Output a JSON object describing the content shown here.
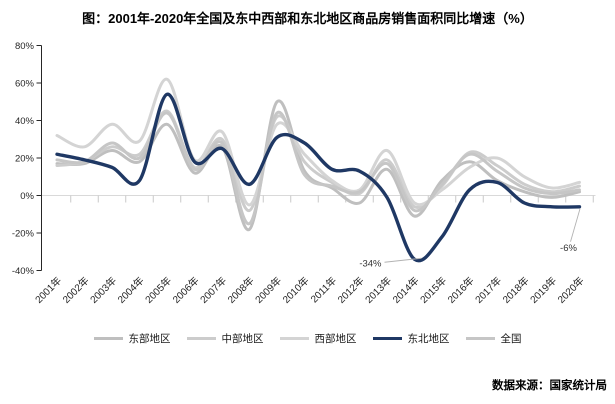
{
  "title": "图：2001年-2020年全国及东中西部和东北地区商品房销售面积同比增速（%）",
  "source": "数据来源：国家统计局",
  "colors": {
    "accent_navy": "#1f3864",
    "gridline": "#d9d9d9",
    "axis": "#262626",
    "tick": "#c9c9c9",
    "annotation_text": "#333333",
    "annotation_leader": "#b3b3b3"
  },
  "chart_data": {
    "type": "line",
    "title": "图：2001年-2020年全国及东中西部和东北地区商品房销售面积同比增速（%）",
    "unit": "%",
    "ylim": [
      -40,
      80
    ],
    "ytick_labels": [
      "80%",
      "60%",
      "40%",
      "20%",
      "0%",
      "-20%",
      "-40%"
    ],
    "grid": "zero-line-only",
    "legend_position": "bottom",
    "categories": [
      "2001年",
      "2002年",
      "2003年",
      "2004年",
      "2005年",
      "2006年",
      "2007年",
      "2008年",
      "2009年",
      "2010年",
      "2011年",
      "2012年",
      "2013年",
      "2014年",
      "2015年",
      "2016年",
      "2017年",
      "2018年",
      "2019年",
      "2020年"
    ],
    "series": [
      {
        "name": "东部地区",
        "key": "east",
        "color": "#bfbfbf",
        "values": [
          17,
          17,
          24,
          18,
          38,
          12,
          26,
          -18,
          50,
          13,
          4,
          -4,
          14,
          -11,
          8,
          18,
          8,
          2,
          -1,
          2
        ]
      },
      {
        "name": "中部地区",
        "key": "central",
        "color": "#cccccc",
        "values": [
          16,
          18,
          26,
          22,
          45,
          15,
          30,
          -8,
          42,
          18,
          7,
          1,
          19,
          -6,
          5,
          23,
          16,
          6,
          2,
          5
        ]
      },
      {
        "name": "西部地区",
        "key": "west",
        "color": "#d4d4d4",
        "values": [
          32,
          26,
          38,
          29,
          62,
          19,
          34,
          -5,
          38,
          22,
          8,
          3,
          24,
          -4,
          3,
          15,
          20,
          10,
          4,
          7
        ]
      },
      {
        "name": "东北地区",
        "key": "northeast",
        "color": "#1f3864",
        "emphasis": true,
        "values": [
          22,
          19,
          15,
          8,
          54,
          18,
          25,
          6,
          31,
          28,
          14,
          13,
          -1,
          -34,
          -22,
          3,
          7,
          -4,
          -6,
          -6
        ]
      },
      {
        "name": "全国",
        "key": "national",
        "color": "#c6c6c6",
        "values": [
          19,
          18,
          28,
          20,
          44,
          14,
          28,
          -15,
          44,
          11,
          5,
          2,
          17,
          -8,
          6,
          22,
          13,
          4,
          1,
          3
        ]
      }
    ],
    "annotations": [
      {
        "text": "-34%",
        "series": "东北地区",
        "category": "2014年",
        "value": -34,
        "placement": "left"
      },
      {
        "text": "-6%",
        "series": "东北地区",
        "category": "2020年",
        "value": -6,
        "placement": "below"
      }
    ]
  }
}
